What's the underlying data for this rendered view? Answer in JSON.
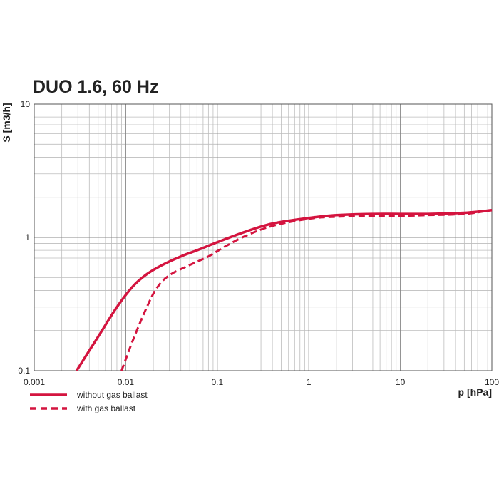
{
  "chart_data": {
    "type": "line",
    "title": "DUO 1.6, 60 Hz",
    "xlabel": "p [hPa]",
    "ylabel": "S [m3/h]",
    "xscale": "log",
    "yscale": "log",
    "xlim": [
      0.001,
      100
    ],
    "ylim": [
      0.1,
      10
    ],
    "x_ticks": [
      "0.001",
      "0.01",
      "0.1",
      "1",
      "10",
      "100"
    ],
    "y_ticks": [
      "0.1",
      "1",
      "10"
    ],
    "grid": true,
    "legend_position": "bottom-left",
    "series": [
      {
        "name": "without gas ballast",
        "style": "solid",
        "color": "#d4143f",
        "x": [
          0.0029,
          0.005,
          0.008,
          0.012,
          0.017,
          0.025,
          0.04,
          0.06,
          0.1,
          0.2,
          0.4,
          1,
          2,
          5,
          10,
          20,
          50,
          100
        ],
        "y": [
          0.1,
          0.18,
          0.3,
          0.43,
          0.53,
          0.62,
          0.72,
          0.8,
          0.92,
          1.1,
          1.27,
          1.4,
          1.47,
          1.5,
          1.5,
          1.5,
          1.53,
          1.6
        ]
      },
      {
        "name": "with gas ballast",
        "style": "dashed",
        "color": "#d4143f",
        "x": [
          0.009,
          0.012,
          0.017,
          0.022,
          0.03,
          0.05,
          0.08,
          0.12,
          0.2,
          0.4,
          1,
          2,
          5,
          10,
          20,
          50,
          100
        ],
        "y": [
          0.1,
          0.17,
          0.3,
          0.42,
          0.52,
          0.62,
          0.72,
          0.85,
          1.02,
          1.22,
          1.38,
          1.43,
          1.45,
          1.45,
          1.47,
          1.5,
          1.6
        ]
      }
    ]
  }
}
